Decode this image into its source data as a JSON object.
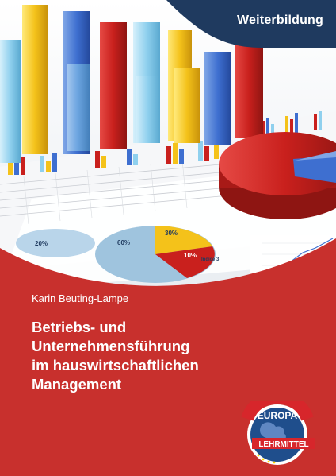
{
  "cover": {
    "series": "Weiterbildung",
    "author": "Karin Beuting-Lampe",
    "title_lines": [
      "Betriebs- und",
      "Unternehmensführung",
      "im hauswirtschaftlichen",
      "Management"
    ],
    "publisher_logo": {
      "word_top": "EUROPA",
      "word_bottom": "LEHRMITTEL"
    },
    "photo_labels": {
      "pie_a": "60%",
      "pie_b": "30%",
      "pie_c": "10%",
      "pie_d": "20%",
      "callout": "Indice 3"
    }
  },
  "colors": {
    "cover_red": "#c8302d",
    "banner_navy": "#1f3a5f",
    "logo_red": "#d7262b",
    "logo_blue": "#1f4e8c"
  }
}
